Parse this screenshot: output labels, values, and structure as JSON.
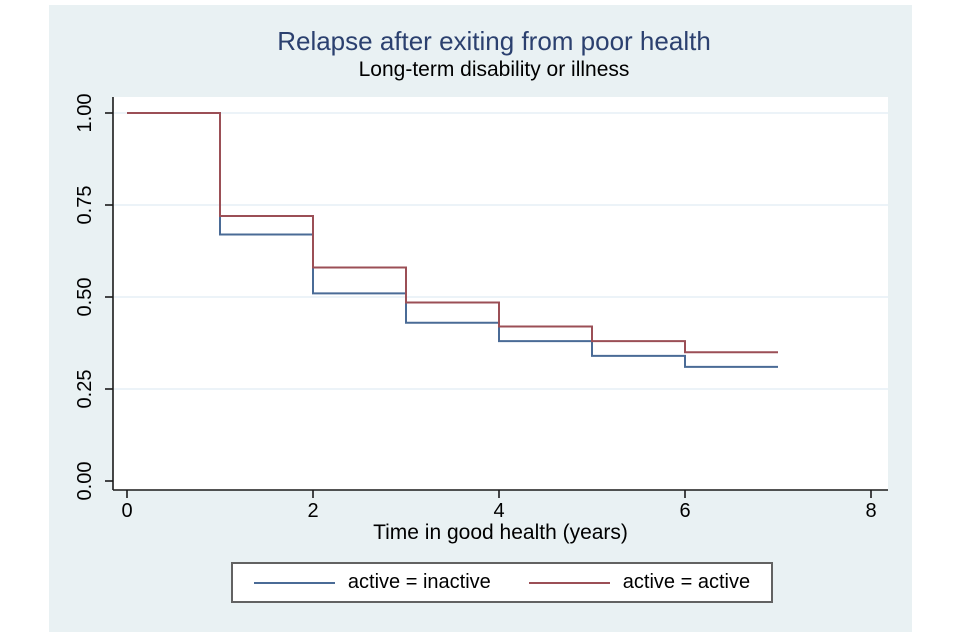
{
  "colors": {
    "background": "#e9f1f3",
    "plot_background": "#ffffff",
    "title": "#2b406f",
    "axis": "#1a1a1a",
    "grid": "#e6eff5",
    "legend_border": "#626262",
    "series_inactive": "#4a6b96",
    "series_active": "#9b4f56"
  },
  "chart_data": {
    "type": "line",
    "subtype": "step-kaplan-meier-survival",
    "title": "Relapse after exiting from poor health",
    "subtitle": "Long-term disability or illness",
    "xlabel": "Time in good health (years)",
    "ylabel": "",
    "xlim": [
      0,
      8
    ],
    "ylim": [
      0,
      1
    ],
    "x_ticks": [
      "0",
      "2",
      "4",
      "6",
      "8"
    ],
    "y_ticks": [
      "0.00",
      "0.25",
      "0.50",
      "0.75",
      "1.00"
    ],
    "grid": true,
    "legend_position": "bottom",
    "series": [
      {
        "name": "active = inactive",
        "color": "#4a6b96",
        "steps": [
          [
            0,
            1.0
          ],
          [
            1,
            0.67
          ],
          [
            2,
            0.51
          ],
          [
            3,
            0.43
          ],
          [
            4,
            0.38
          ],
          [
            5,
            0.34
          ],
          [
            6,
            0.31
          ]
        ],
        "end_x": 7
      },
      {
        "name": "active = active",
        "color": "#9b4f56",
        "steps": [
          [
            0,
            1.0
          ],
          [
            1,
            0.72
          ],
          [
            2,
            0.58
          ],
          [
            3,
            0.485
          ],
          [
            4,
            0.42
          ],
          [
            5,
            0.38
          ],
          [
            6,
            0.35
          ]
        ],
        "end_x": 7
      }
    ]
  }
}
